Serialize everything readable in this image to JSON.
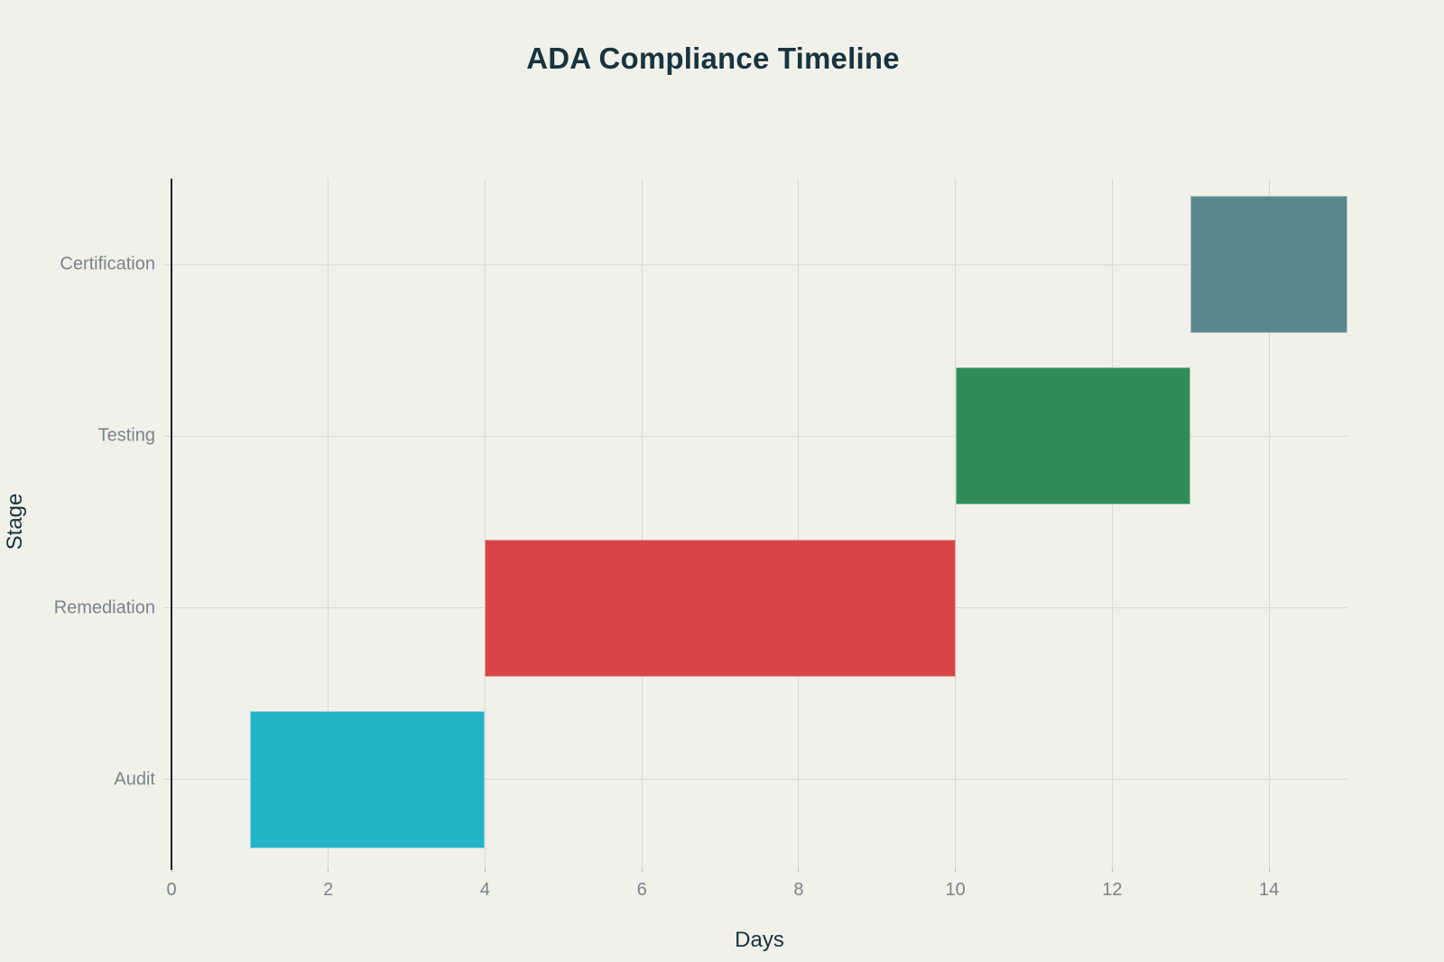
{
  "page": {
    "background_color": "#f1f1ea"
  },
  "chart_data": {
    "type": "bar",
    "variant": "horizontal-gantt-waterfall",
    "title": "ADA Compliance Timeline",
    "xlabel": "Days",
    "ylabel": "Stage",
    "xlim": [
      0,
      15
    ],
    "x_ticks": [
      0,
      2,
      4,
      6,
      8,
      10,
      12,
      14
    ],
    "categories_top_to_bottom": [
      "Certification",
      "Testing",
      "Remediation",
      "Audit"
    ],
    "series": [
      {
        "name": "Audit",
        "start": 1,
        "end": 4,
        "duration_days": 3,
        "color": "#20b4c9"
      },
      {
        "name": "Remediation",
        "start": 4,
        "end": 10,
        "duration_days": 6,
        "color": "#d94546"
      },
      {
        "name": "Testing",
        "start": 10,
        "end": 13,
        "duration_days": 3,
        "color": "#2f8c58"
      },
      {
        "name": "Certification",
        "start": 13,
        "end": 15,
        "duration_days": 2,
        "color": "#5b878e"
      }
    ],
    "grid": true,
    "legend": false,
    "bar_thickness_fraction": 0.8,
    "colors": {
      "background": "#f1f1ea",
      "title_text": "#17343f",
      "axis_title_text": "#17343f",
      "tick_text": "#7b838a",
      "gridline": "#d9d8d0",
      "axis_line": "#1f1f1f"
    }
  }
}
